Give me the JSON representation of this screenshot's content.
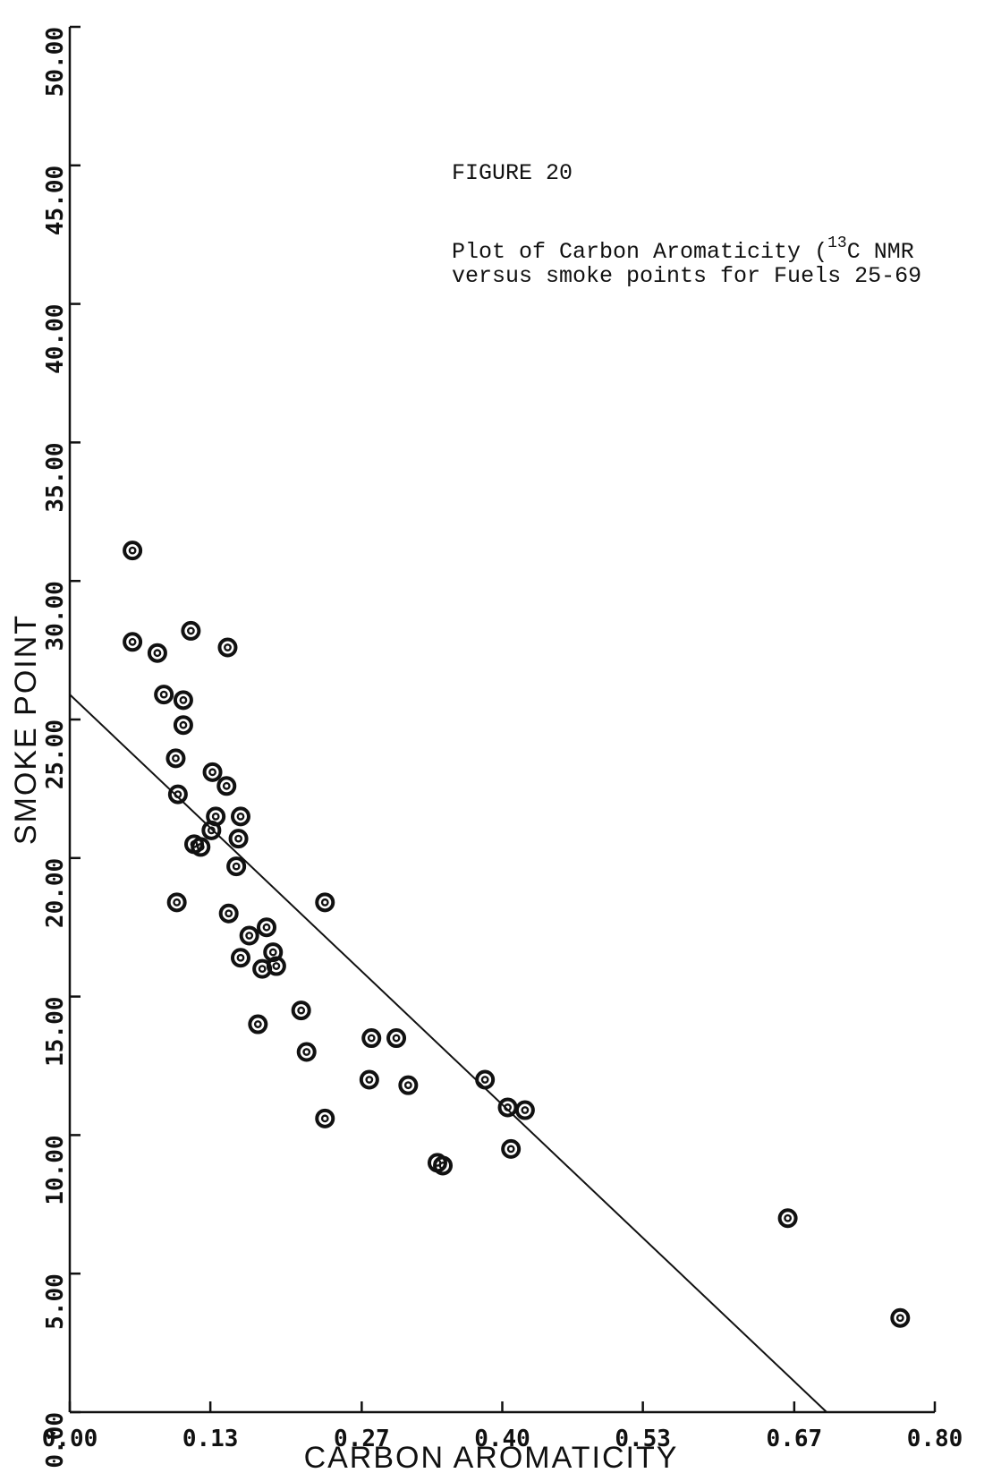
{
  "chart_data": {
    "type": "scatter",
    "xlabel": "CARBON AROMATICITY",
    "ylabel": "SMOKE POINT",
    "xlim": [
      0.0,
      0.8
    ],
    "ylim": [
      0.0,
      50.0
    ],
    "x_ticks": [
      0.0,
      0.13,
      0.27,
      0.4,
      0.53,
      0.67,
      0.8
    ],
    "x_tick_labels": [
      "0.00",
      "0.13",
      "0.27",
      "0.40",
      "0.53",
      "0.67",
      "0.80"
    ],
    "y_ticks": [
      0,
      5,
      10,
      15,
      20,
      25,
      30,
      35,
      40,
      45,
      50
    ],
    "y_tick_labels": [
      "0.00",
      "5.00",
      "10.00",
      "15.00",
      "20.00",
      "25.00",
      "30.00",
      "35.00",
      "40.00",
      "45.00",
      "50.00"
    ],
    "grid": false,
    "annotations": {
      "figure_label": "FIGURE 20",
      "caption_line1_prefix": "Plot of Carbon Aromaticity (",
      "caption_superscript": "13",
      "caption_line1_suffix": "C NMR",
      "caption_line2": "versus smoke points for Fuels 25-69"
    },
    "series": [
      {
        "values": [
          [
            0.058,
            31.1
          ],
          [
            0.058,
            27.8
          ],
          [
            0.081,
            27.4
          ],
          [
            0.112,
            28.2
          ],
          [
            0.146,
            27.6
          ],
          [
            0.087,
            25.9
          ],
          [
            0.105,
            25.7
          ],
          [
            0.105,
            24.8
          ],
          [
            0.098,
            23.6
          ],
          [
            0.132,
            23.1
          ],
          [
            0.145,
            22.6
          ],
          [
            0.1,
            22.3
          ],
          [
            0.135,
            21.5
          ],
          [
            0.158,
            21.5
          ],
          [
            0.131,
            21.0
          ],
          [
            0.156,
            20.7
          ],
          [
            0.115,
            20.5
          ],
          [
            0.121,
            20.4
          ],
          [
            0.154,
            19.7
          ],
          [
            0.099,
            18.4
          ],
          [
            0.147,
            18.0
          ],
          [
            0.236,
            18.4
          ],
          [
            0.182,
            17.5
          ],
          [
            0.166,
            17.2
          ],
          [
            0.188,
            16.6
          ],
          [
            0.158,
            16.4
          ],
          [
            0.191,
            16.1
          ],
          [
            0.178,
            16.0
          ],
          [
            0.214,
            14.5
          ],
          [
            0.174,
            14.0
          ],
          [
            0.219,
            13.0
          ],
          [
            0.279,
            13.5
          ],
          [
            0.302,
            13.5
          ],
          [
            0.277,
            12.0
          ],
          [
            0.313,
            11.8
          ],
          [
            0.384,
            12.0
          ],
          [
            0.405,
            11.0
          ],
          [
            0.421,
            10.9
          ],
          [
            0.236,
            10.6
          ],
          [
            0.408,
            9.5
          ],
          [
            0.34,
            9.0
          ],
          [
            0.345,
            8.9
          ],
          [
            0.664,
            7.0
          ],
          [
            0.768,
            3.4
          ]
        ]
      },
      {
        "type": "line",
        "values": [
          [
            0.0,
            25.9
          ],
          [
            0.7,
            0.0
          ]
        ]
      }
    ]
  }
}
